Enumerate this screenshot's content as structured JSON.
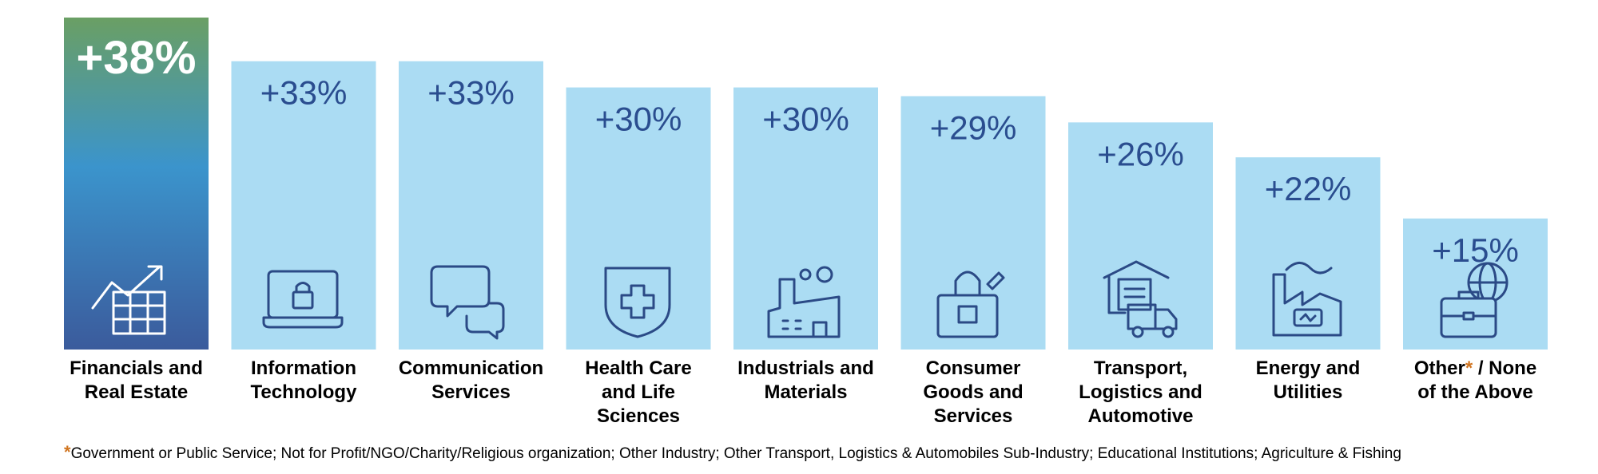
{
  "chart_data": {
    "type": "bar",
    "title": "",
    "xlabel": "",
    "ylabel": "",
    "ylim": [
      0,
      38
    ],
    "categories": [
      "Financials and Real Estate",
      "Information Technology",
      "Communication Services",
      "Health Care and Life Sciences",
      "Industrials and Materials",
      "Consumer Goods and Services",
      "Transport, Logistics and Automotive",
      "Energy and Utilities",
      "Other* / None of the Above"
    ],
    "values": [
      38,
      33,
      33,
      30,
      30,
      29,
      26,
      22,
      15
    ],
    "data_labels": [
      "+38%",
      "+33%",
      "+33%",
      "+30%",
      "+30%",
      "+29%",
      "+26%",
      "+22%",
      "+15%"
    ],
    "highlight_index": 0,
    "grid": false,
    "legend": "none"
  },
  "labels": [
    {
      "lines": [
        "Financials and",
        "Real Estate"
      ]
    },
    {
      "lines": [
        "Information",
        "Technology"
      ]
    },
    {
      "lines": [
        "Communication",
        "Services"
      ]
    },
    {
      "lines": [
        "Health Care",
        "and Life",
        "Sciences"
      ]
    },
    {
      "lines": [
        "Industrials and",
        "Materials"
      ]
    },
    {
      "lines": [
        "Consumer",
        "Goods and",
        "Services"
      ]
    },
    {
      "lines": [
        "Transport,",
        "Logistics and",
        "Automotive"
      ]
    },
    {
      "lines": [
        "Energy and",
        "Utilities"
      ]
    },
    {
      "lines": [
        "Other",
        "*",
        " / None",
        "of the Above"
      ]
    }
  ],
  "icons": [
    "growth-chart-icon",
    "laptop-lock-icon",
    "chat-bubbles-icon",
    "medical-shield-icon",
    "factory-icon",
    "shopping-bag-icon",
    "delivery-warehouse-icon",
    "energy-plant-icon",
    "briefcase-globe-icon"
  ],
  "footnote": {
    "marker": "*",
    "text": "Government or Public Service; Not for Profit/NGO/Charity/Religious organization; Other Industry; Other Transport, Logistics & Automobiles Sub-Industry; Educational Institutions; Agriculture & Fishing"
  },
  "colors": {
    "bar_fill": "#abdcf3",
    "value_text": "#2a4d8f",
    "highlight_gradient": [
      "#6a9f64",
      "#3b94cc",
      "#3b5b9c"
    ],
    "highlight_text": "#ffffff",
    "icon_stroke": "#2b4a86",
    "footnote_marker": "#d0741f"
  }
}
